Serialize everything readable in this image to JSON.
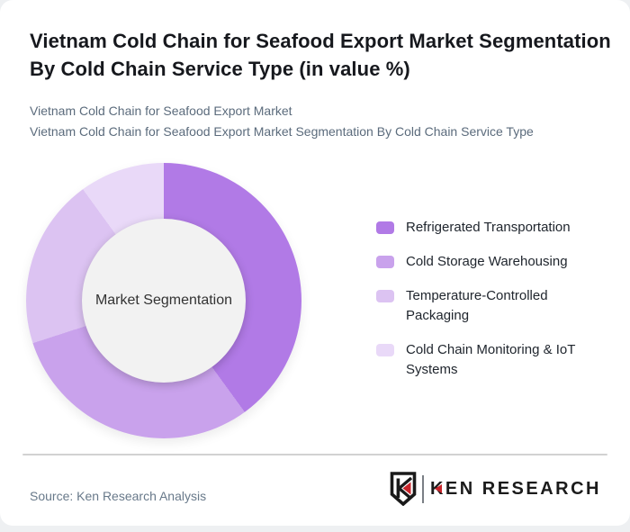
{
  "header": {
    "title": "Vietnam Cold Chain for Seafood Export Market Segmentation By Cold Chain Service Type (in value %)",
    "subtitle1": "Vietnam Cold Chain for Seafood Export Market",
    "subtitle2": "Vietnam Cold Chain for Seafood Export Market Segmentation By Cold Chain Service Type"
  },
  "chart_data": {
    "type": "pie",
    "subtype": "donut",
    "title": "Vietnam Cold Chain for Seafood Export Market Segmentation By Cold Chain Service Type (in value %)",
    "center_label": "Market Segmentation",
    "labels": [
      "Refrigerated Transportation",
      "Cold Storage Warehousing",
      "Temperature-Controlled Packaging",
      "Cold Chain Monitoring & IoT Systems"
    ],
    "values": [
      40,
      30,
      20,
      10
    ],
    "values_unit": "%",
    "values_are_estimates_from_arc_angles": true,
    "colors": [
      "#b17ae6",
      "#c9a2ec",
      "#dcc3f2",
      "#e9d9f8"
    ],
    "start_angle_deg": 0,
    "direction": "clockwise",
    "legend_position": "right",
    "hole_color": "#f2f2f2",
    "data_labels_shown": false
  },
  "footer": {
    "source": "Source: Ken Research Analysis",
    "logo_text": "KEN RESEARCH"
  },
  "colors": {
    "card_background": "#ffffff",
    "page_background": "#eef0f2",
    "title_text": "#16181d",
    "subtitle_text": "#5b6b7c",
    "legend_text": "#20262e",
    "source_text": "#68798a",
    "divider": "#d2d2d2",
    "logo_red": "#c9252b",
    "logo_black": "#1b1b1b"
  }
}
